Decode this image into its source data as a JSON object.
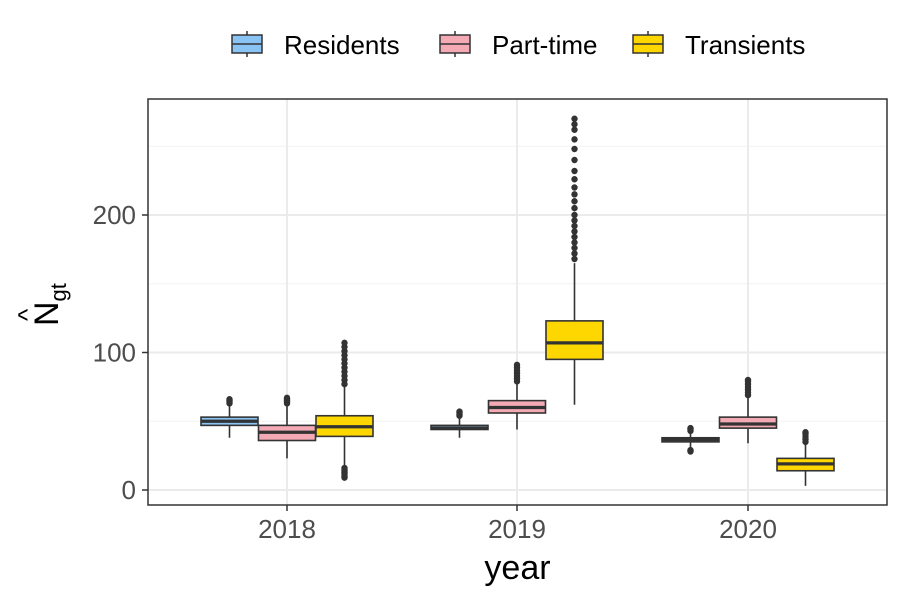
{
  "chart_data": {
    "type": "boxplot",
    "title": "",
    "xlabel": "year",
    "ylabel": {
      "main": "N",
      "hat": "^",
      "subscript": "gt"
    },
    "categories": [
      "2018",
      "2019",
      "2020"
    ],
    "ylim": [
      -10,
      280
    ],
    "yticks": [
      0,
      100,
      200
    ],
    "grid": true,
    "legend_position": "top",
    "series": [
      {
        "name": "Residents",
        "color": "#89c4f4",
        "boxes": [
          {
            "year": "2018",
            "whisker_low": 38,
            "q1": 47,
            "median": 50,
            "q3": 53,
            "whisker_high": 62,
            "outliers_low": [],
            "outliers_high": [
              63,
              64,
              65,
              66
            ]
          },
          {
            "year": "2019",
            "whisker_low": 38,
            "q1": 44,
            "median": 45,
            "q3": 47,
            "whisker_high": 53,
            "outliers_low": [],
            "outliers_high": [
              54,
              55,
              56,
              57
            ]
          },
          {
            "year": "2020",
            "whisker_low": 30,
            "q1": 35,
            "median": 36.5,
            "q3": 38,
            "whisker_high": 42,
            "outliers_low": [
              28,
              29
            ],
            "outliers_high": [
              43,
              44,
              45
            ]
          }
        ]
      },
      {
        "name": "Part-time",
        "color": "#f4aab5",
        "boxes": [
          {
            "year": "2018",
            "whisker_low": 23,
            "q1": 36,
            "median": 42,
            "q3": 47,
            "whisker_high": 62,
            "outliers_low": [],
            "outliers_high": [
              63,
              64,
              65,
              66,
              67
            ]
          },
          {
            "year": "2019",
            "whisker_low": 44,
            "q1": 56,
            "median": 60,
            "q3": 65,
            "whisker_high": 77,
            "outliers_low": [],
            "outliers_high": [
              79,
              81,
              83,
              85,
              87,
              89,
              91
            ]
          },
          {
            "year": "2020",
            "whisker_low": 34,
            "q1": 45,
            "median": 48,
            "q3": 53,
            "whisker_high": 67,
            "outliers_low": [],
            "outliers_high": [
              69,
              71,
              73,
              75,
              77,
              79,
              80
            ]
          }
        ]
      },
      {
        "name": "Transients",
        "color": "#ffd700",
        "boxes": [
          {
            "year": "2018",
            "whisker_low": 17,
            "q1": 39,
            "median": 46,
            "q3": 54,
            "whisker_high": 75,
            "outliers_low": [
              9,
              10,
              11,
              12,
              13,
              14,
              15,
              16
            ],
            "outliers_high": [
              77,
              80,
              83,
              86,
              89,
              92,
              95,
              98,
              101,
              104,
              107
            ]
          },
          {
            "year": "2019",
            "whisker_low": 62,
            "q1": 95,
            "median": 107,
            "q3": 123,
            "whisker_high": 165,
            "outliers_low": [],
            "outliers_high": [
              168,
              172,
              176,
              180,
              184,
              188,
              192,
              196,
              200,
              205,
              210,
              215,
              220,
              226,
              232,
              240,
              248,
              255,
              262,
              266,
              270
            ]
          },
          {
            "year": "2020",
            "whisker_low": 3,
            "q1": 14,
            "median": 19,
            "q3": 23,
            "whisker_high": 34,
            "outliers_low": [],
            "outliers_high": [
              35,
              37,
              39,
              41,
              42
            ]
          }
        ]
      }
    ]
  }
}
